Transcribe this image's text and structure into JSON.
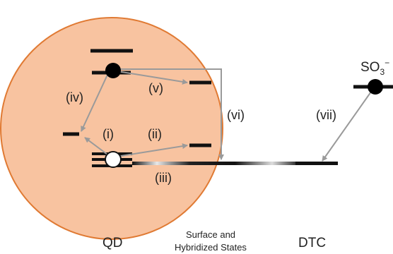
{
  "colors": {
    "qd_fill": "#f8c3a0",
    "qd_outline": "#e07a33",
    "level": "#111111",
    "arrow": "#9a9a9a"
  },
  "labels": {
    "so3": "SO",
    "so3_sub": "3",
    "so3_sup": "−",
    "i": "(i)",
    "ii": "(ii)",
    "iii": "(iii)",
    "iv": "(iv)",
    "v": "(v)",
    "vi": "(vi)",
    "vii": "(vii)"
  },
  "footer": {
    "qd": "QD",
    "surface_line1": "Surface and",
    "surface_line2": "Hybridized States",
    "dtc": "DTC"
  }
}
